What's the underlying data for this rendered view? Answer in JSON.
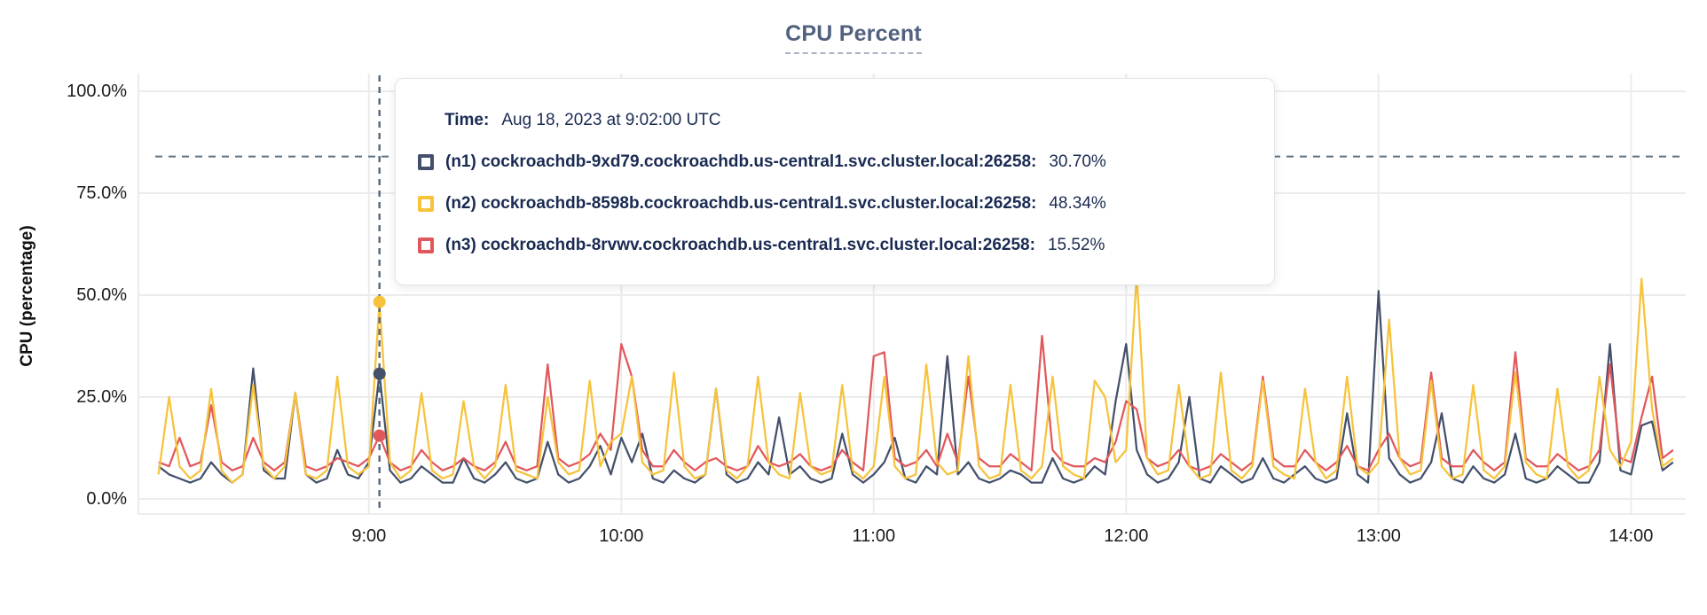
{
  "title": {
    "text": "CPU Percent"
  },
  "tooltip": {
    "time_label": "Time:",
    "time_value": "Aug 18, 2023 at 9:02:00 UTC",
    "rows": [
      {
        "label": "(n1) cockroachdb-9xd79.cockroachdb.us-central1.svc.cluster.local:26258:",
        "value": "30.70%"
      },
      {
        "label": "(n2) cockroachdb-8598b.cockroachdb.us-central1.svc.cluster.local:26258:",
        "value": "48.34%"
      },
      {
        "label": "(n3) cockroachdb-8rvwv.cockroachdb.us-central1.svc.cluster.local:26258:",
        "value": "15.52%"
      }
    ]
  },
  "chart_data": {
    "type": "line",
    "title": "CPU Percent",
    "xlabel": "",
    "ylabel": "CPU (percentage)",
    "ylim": [
      0,
      100
    ],
    "grid": true,
    "legend_position": "tooltip-overlay",
    "colors": {
      "grid": "#ECECEC",
      "threshold": "#5F7180",
      "hover_line": "#5A6B7D",
      "tick_text": "#1c1c1c"
    },
    "yticks": [
      {
        "value": 0,
        "label": "0.0%"
      },
      {
        "value": 25,
        "label": "25.0%"
      },
      {
        "value": 50,
        "label": "50.0%"
      },
      {
        "value": 75,
        "label": "75.0%"
      },
      {
        "value": 100,
        "label": "100.0%"
      }
    ],
    "xlim_minutes": [
      485,
      853
    ],
    "xticks": [
      {
        "minute": 540,
        "label": "9:00"
      },
      {
        "minute": 600,
        "label": "10:00"
      },
      {
        "minute": 660,
        "label": "11:00"
      },
      {
        "minute": 720,
        "label": "12:00"
      },
      {
        "minute": 780,
        "label": "13:00"
      },
      {
        "minute": 840,
        "label": "14:00"
      }
    ],
    "threshold_line": {
      "value": 84,
      "style": "dashed"
    },
    "hover": {
      "minute": 542.5,
      "time": "Aug 18, 2023 at 9:02:00 UTC",
      "points": [
        {
          "series_index": 0,
          "value": 30.7
        },
        {
          "series_index": 1,
          "value": 48.34
        },
        {
          "series_index": 2,
          "value": 15.52
        }
      ]
    },
    "x_minutes": [
      490,
      492.5,
      495,
      497.5,
      500,
      502.5,
      505,
      507.5,
      510,
      512.5,
      515,
      517.5,
      520,
      522.5,
      525,
      527.5,
      530,
      532.5,
      535,
      537.5,
      540,
      542.5,
      545,
      547.5,
      550,
      552.5,
      555,
      557.5,
      560,
      562.5,
      565,
      567.5,
      570,
      572.5,
      575,
      577.5,
      580,
      582.5,
      585,
      587.5,
      590,
      592.5,
      595,
      597.5,
      600,
      602.5,
      605,
      607.5,
      610,
      612.5,
      615,
      617.5,
      620,
      622.5,
      625,
      627.5,
      630,
      632.5,
      635,
      637.5,
      640,
      642.5,
      645,
      647.5,
      650,
      652.5,
      655,
      657.5,
      660,
      662.5,
      665,
      667.5,
      670,
      672.5,
      675,
      677.5,
      680,
      682.5,
      685,
      687.5,
      690,
      692.5,
      695,
      697.5,
      700,
      702.5,
      705,
      707.5,
      710,
      712.5,
      715,
      717.5,
      720,
      722.5,
      725,
      727.5,
      730,
      732.5,
      735,
      737.5,
      740,
      742.5,
      745,
      747.5,
      750,
      752.5,
      755,
      757.5,
      760,
      762.5,
      765,
      767.5,
      770,
      772.5,
      775,
      777.5,
      780,
      782.5,
      785,
      787.5,
      790,
      792.5,
      795,
      797.5,
      800,
      802.5,
      805,
      807.5,
      810,
      812.5,
      815,
      817.5,
      820,
      822.5,
      825,
      827.5,
      830,
      832.5,
      835,
      837.5,
      840,
      842.5,
      845,
      847.5,
      850
    ],
    "series": [
      {
        "name": "(n1) cockroachdb-9xd79.cockroachdb.us-central1.svc.cluster.local:26258",
        "color": "#44506B",
        "values": [
          8,
          6,
          5,
          4,
          5,
          9,
          6,
          4,
          6,
          32,
          7,
          5,
          5,
          26,
          6,
          4,
          5,
          12,
          6,
          5,
          9,
          30.7,
          7,
          4,
          5,
          8,
          6,
          4,
          4,
          10,
          5,
          4,
          6,
          9,
          5,
          4,
          5,
          14,
          6,
          4,
          5,
          8,
          13,
          6,
          15,
          9,
          16,
          5,
          4,
          7,
          5,
          4,
          6,
          27,
          6,
          4,
          5,
          9,
          6,
          20,
          6,
          8,
          5,
          4,
          5,
          16,
          6,
          4,
          6,
          9,
          15,
          5,
          4,
          8,
          6,
          35,
          6,
          9,
          5,
          4,
          5,
          7,
          6,
          4,
          4,
          10,
          5,
          4,
          5,
          8,
          6,
          24,
          38,
          12,
          6,
          4,
          5,
          9,
          25,
          5,
          4,
          8,
          6,
          4,
          5,
          10,
          5,
          4,
          6,
          8,
          5,
          4,
          5,
          21,
          6,
          4,
          51,
          10,
          6,
          4,
          5,
          9,
          21,
          5,
          4,
          8,
          5,
          4,
          6,
          16,
          5,
          4,
          5,
          8,
          6,
          4,
          4,
          9,
          38,
          7,
          6,
          18,
          19,
          7,
          9
        ]
      },
      {
        "name": "(n2) cockroachdb-8598b.cockroachdb.us-central1.svc.cluster.local:26258",
        "color": "#F6C33B",
        "values": [
          6,
          25,
          8,
          5,
          7,
          27,
          7,
          4,
          6,
          28,
          8,
          5,
          8,
          26,
          6,
          5,
          7,
          30,
          8,
          6,
          8,
          48.34,
          9,
          5,
          7,
          26,
          7,
          5,
          6,
          24,
          8,
          5,
          8,
          28,
          7,
          6,
          5,
          25,
          9,
          6,
          7,
          29,
          8,
          14,
          16,
          30,
          9,
          6,
          7,
          31,
          8,
          5,
          6,
          27,
          7,
          5,
          8,
          30,
          9,
          6,
          5,
          26,
          8,
          6,
          7,
          28,
          7,
          5,
          8,
          30,
          8,
          5,
          6,
          33,
          9,
          6,
          7,
          35,
          8,
          5,
          6,
          28,
          7,
          5,
          8,
          30,
          8,
          6,
          5,
          29,
          25,
          9,
          12,
          55,
          10,
          6,
          7,
          28,
          8,
          5,
          6,
          31,
          7,
          5,
          8,
          29,
          8,
          6,
          5,
          27,
          9,
          5,
          7,
          30,
          8,
          6,
          9,
          44,
          10,
          6,
          7,
          29,
          8,
          5,
          6,
          28,
          7,
          5,
          8,
          31,
          9,
          6,
          5,
          27,
          8,
          5,
          7,
          30,
          12,
          8,
          14,
          54,
          22,
          8,
          10
        ]
      },
      {
        "name": "(n3) cockroachdb-8rvwv.cockroachdb.us-central1.svc.cluster.local:26258",
        "color": "#E1585C",
        "values": [
          9,
          8,
          15,
          8,
          9,
          23,
          9,
          7,
          8,
          15,
          9,
          7,
          9,
          26,
          8,
          7,
          8,
          10,
          9,
          8,
          10,
          15.52,
          9,
          7,
          8,
          12,
          9,
          7,
          8,
          10,
          8,
          7,
          9,
          14,
          8,
          7,
          8,
          33,
          10,
          8,
          9,
          11,
          16,
          12,
          38,
          30,
          12,
          8,
          8,
          12,
          9,
          7,
          9,
          10,
          8,
          7,
          8,
          13,
          9,
          8,
          9,
          11,
          8,
          7,
          8,
          12,
          9,
          7,
          35,
          36,
          10,
          8,
          9,
          12,
          8,
          16,
          9,
          30,
          10,
          8,
          8,
          11,
          9,
          7,
          40,
          12,
          9,
          8,
          8,
          10,
          9,
          14,
          24,
          22,
          10,
          8,
          9,
          12,
          8,
          7,
          8,
          11,
          9,
          7,
          9,
          30,
          10,
          8,
          8,
          12,
          9,
          7,
          9,
          13,
          8,
          7,
          12,
          16,
          10,
          8,
          9,
          31,
          10,
          8,
          8,
          12,
          9,
          7,
          9,
          36,
          10,
          8,
          8,
          11,
          9,
          7,
          8,
          12,
          33,
          10,
          9,
          20,
          30,
          10,
          12
        ]
      }
    ]
  }
}
